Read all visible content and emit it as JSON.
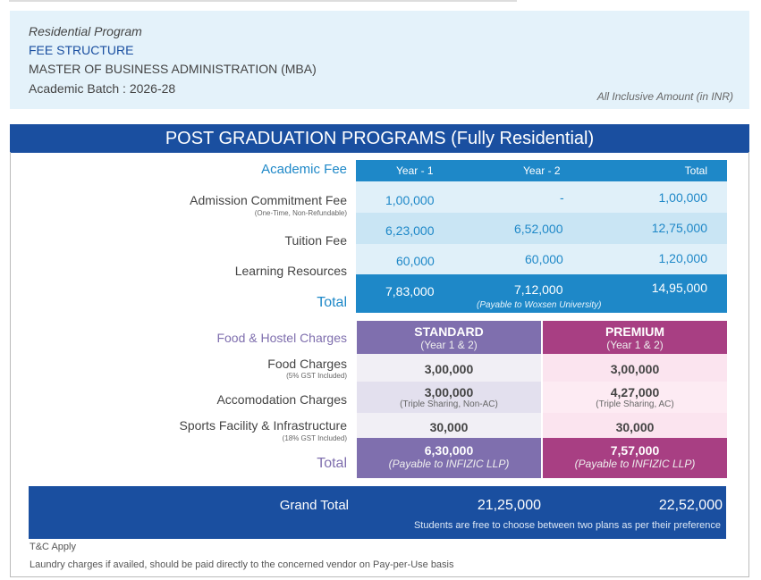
{
  "header": {
    "program": "Residential Program",
    "fee_structure": "FEE STRUCTURE",
    "degree": "MASTER OF BUSINESS ADMINISTRATION (MBA)",
    "batch": "Academic Batch : 2026-28",
    "note": "All Inclusive Amount (in INR)"
  },
  "title": "POST GRADUATION PROGRAMS (Fully Residential)",
  "academic": {
    "heading": "Academic Fee",
    "columns": [
      "Year - 1",
      "Year - 2",
      "Total"
    ],
    "rows": [
      {
        "label": "Admission Commitment Fee",
        "sub": "(One-Time, Non-Refundable)",
        "values": [
          "1,00,000",
          "-",
          "1,00,000"
        ]
      },
      {
        "label": "Tuition Fee",
        "sub": "",
        "values": [
          "6,23,000",
          "6,52,000",
          "12,75,000"
        ]
      },
      {
        "label": "Learning Resources",
        "sub": "",
        "values": [
          "60,000",
          "60,000",
          "1,20,000"
        ]
      }
    ],
    "total": {
      "label": "Total",
      "values": [
        "7,83,000",
        "7,12,000",
        "14,95,000"
      ],
      "note": "(Payable to Woxsen University)"
    }
  },
  "hostel": {
    "heading": "Food & Hostel Charges",
    "plans": [
      {
        "name": "STANDARD",
        "sub": "(Year 1 & 2)"
      },
      {
        "name": "PREMIUM",
        "sub": "(Year 1 & 2)"
      }
    ],
    "rows": [
      {
        "label": "Food Charges",
        "sub": "(5% GST Included)",
        "values": [
          {
            "v": "3,00,000",
            "n": ""
          },
          {
            "v": "3,00,000",
            "n": ""
          }
        ]
      },
      {
        "label": "Accomodation Charges",
        "sub": "",
        "values": [
          {
            "v": "3,00,000",
            "n": "(Triple Sharing, Non-AC)"
          },
          {
            "v": "4,27,000",
            "n": "(Triple Sharing, AC)"
          }
        ]
      },
      {
        "label": "Sports Facility & Infrastructure",
        "sub": "(18% GST Included)",
        "values": [
          {
            "v": "30,000",
            "n": ""
          },
          {
            "v": "30,000",
            "n": ""
          }
        ]
      }
    ],
    "total": {
      "label": "Total",
      "values": [
        {
          "v": "6,30,000",
          "n": "(Payable to INFIZIC LLP)"
        },
        {
          "v": "7,57,000",
          "n": "(Payable to INFIZIC LLP)"
        }
      ]
    }
  },
  "grand_total": {
    "label": "Grand Total",
    "standard": "21,25,000",
    "premium": "22,52,000",
    "note": "Students are free to choose between two plans as per their preference"
  },
  "footer": {
    "tc": "T&C Apply",
    "laundry": "Laundry charges if availed, should be paid directly to the concerned vendor on Pay-per-Use basis"
  },
  "colors": {
    "navy": "#1a4fa0",
    "blue": "#1e88c8",
    "standard": "#7f6fae",
    "premium": "#a83f83"
  }
}
